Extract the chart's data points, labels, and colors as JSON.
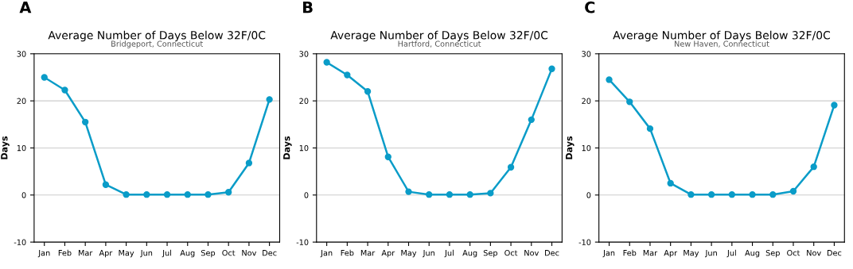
{
  "chart_data": [
    {
      "type": "line",
      "title": "Average Number of Days Below 32F/0C",
      "subtitle": "Bridgeport, Connecticut",
      "ylabel": "Days",
      "annotations": [
        "A"
      ],
      "categories": [
        "Jan",
        "Feb",
        "Mar",
        "Apr",
        "May",
        "Jun",
        "Jul",
        "Aug",
        "Sep",
        "Oct",
        "Nov",
        "Dec"
      ],
      "series": [
        {
          "color": "#0a9cc8",
          "values": [
            25,
            22.3,
            15.5,
            2.2,
            0.1,
            0.1,
            0.1,
            0.1,
            0.1,
            0.6,
            6.8,
            20.3
          ]
        }
      ],
      "ylim": [
        -10,
        30
      ],
      "yticks": [
        -10,
        0,
        10,
        20,
        30
      ],
      "grid": "y",
      "marker": "circle",
      "line_style": "solid"
    },
    {
      "type": "line",
      "title": "Average Number of Days Below 32F/0C",
      "subtitle": "Hartford, Connecticut",
      "ylabel": "Days",
      "annotations": [
        "B"
      ],
      "categories": [
        "Jan",
        "Feb",
        "Mar",
        "Apr",
        "May",
        "Jun",
        "Jul",
        "Aug",
        "Sep",
        "Oct",
        "Nov",
        "Dec"
      ],
      "series": [
        {
          "color": "#0a9cc8",
          "values": [
            28.2,
            25.5,
            22,
            8.1,
            0.7,
            0.1,
            0.1,
            0.1,
            0.4,
            5.9,
            16,
            26.8
          ]
        }
      ],
      "ylim": [
        -10,
        30
      ],
      "yticks": [
        -10,
        0,
        10,
        20,
        30
      ],
      "grid": "y",
      "marker": "circle",
      "line_style": "solid"
    },
    {
      "type": "line",
      "title": "Average Number of Days Below 32F/0C",
      "subtitle": "New Haven, Connecticut",
      "ylabel": "Days",
      "annotations": [
        "C"
      ],
      "categories": [
        "Jan",
        "Feb",
        "Mar",
        "Apr",
        "May",
        "Jun",
        "Jul",
        "Aug",
        "Sep",
        "Oct",
        "Nov",
        "Dec"
      ],
      "series": [
        {
          "color": "#0a9cc8",
          "values": [
            24.5,
            19.8,
            14.1,
            2.5,
            0.1,
            0.1,
            0.1,
            0.1,
            0.1,
            0.8,
            6,
            19.1
          ]
        }
      ],
      "ylim": [
        -10,
        30
      ],
      "yticks": [
        -10,
        0,
        10,
        20,
        30
      ],
      "grid": "y",
      "marker": "circle",
      "line_style": "solid"
    }
  ]
}
